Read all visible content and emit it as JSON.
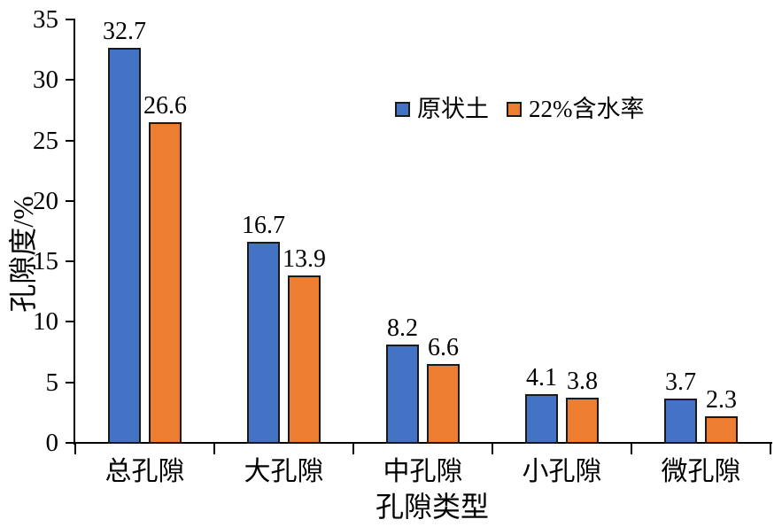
{
  "chart_data": {
    "type": "bar",
    "title": "",
    "categories": [
      "总孔隙",
      "大孔隙",
      "中孔隙",
      "小孔隙",
      "微孔隙"
    ],
    "series": [
      {
        "name": "原状土",
        "color": "#4472C4",
        "values": [
          32.7,
          16.7,
          8.2,
          4.1,
          3.7
        ]
      },
      {
        "name": "22%含水率",
        "color": "#ED7D31",
        "values": [
          26.6,
          13.9,
          6.6,
          3.8,
          2.3
        ]
      }
    ],
    "xlabel": "孔隙类型",
    "ylabel": "孔隙度/%",
    "ylim": [
      0,
      35
    ],
    "yticks": [
      0,
      5,
      10,
      15,
      20,
      25,
      30,
      35
    ],
    "grid": false,
    "legend_position": "upper-center-inside",
    "data_labels": true,
    "bar_border_color": "#1a1a1a",
    "axis_color": "#000000",
    "text_color": "#000000",
    "background_color": "#ffffff"
  }
}
